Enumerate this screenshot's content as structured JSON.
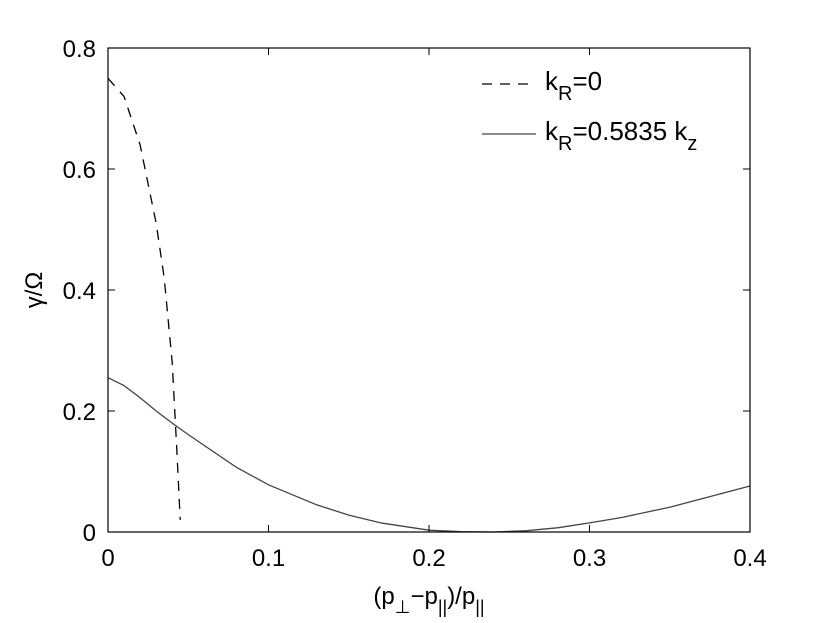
{
  "figure": {
    "background": "#ffffff",
    "axis_color": "#000000"
  },
  "chart_data": {
    "type": "line",
    "xlim": [
      0,
      0.4
    ],
    "ylim": [
      0,
      0.8
    ],
    "x_ticks": [
      0,
      0.1,
      0.2,
      0.3,
      0.4
    ],
    "x_tick_labels": [
      "0",
      "0.1",
      "0.2",
      "0.3",
      "0.4"
    ],
    "y_ticks": [
      0,
      0.2,
      0.4,
      0.6,
      0.8
    ],
    "y_tick_labels": [
      "0",
      "0.2",
      "0.4",
      "0.6",
      "0.8"
    ],
    "xlabel": "(p⊥−p||)/p||",
    "ylabel": "γ/Ω",
    "grid": false,
    "legend_position": "top-right",
    "series": [
      {
        "name": "kR=0",
        "label": {
          "base": "k",
          "sub": "R",
          "rest": "=0"
        },
        "style": "dashed",
        "color": "#000000",
        "x": [
          0,
          0.01,
          0.02,
          0.03,
          0.035,
          0.04,
          0.043,
          0.045
        ],
        "y": [
          0.75,
          0.72,
          0.64,
          0.51,
          0.42,
          0.28,
          0.13,
          0.02
        ]
      },
      {
        "name": "kR=0.5835 kz",
        "label": {
          "base": "k",
          "sub": "R",
          "rest": "=0.5835 k",
          "sub2": "z"
        },
        "style": "solid",
        "color": "#444444",
        "x": [
          0,
          0.01,
          0.02,
          0.03,
          0.04,
          0.05,
          0.06,
          0.08,
          0.1,
          0.13,
          0.15,
          0.17,
          0.2,
          0.22,
          0.24,
          0.26,
          0.28,
          0.3,
          0.32,
          0.35,
          0.38,
          0.4
        ],
        "y": [
          0.255,
          0.242,
          0.222,
          0.2,
          0.18,
          0.161,
          0.143,
          0.107,
          0.078,
          0.045,
          0.028,
          0.015,
          0.003,
          0.0005,
          0.0,
          0.002,
          0.007,
          0.015,
          0.024,
          0.041,
          0.062,
          0.076
        ]
      }
    ]
  }
}
